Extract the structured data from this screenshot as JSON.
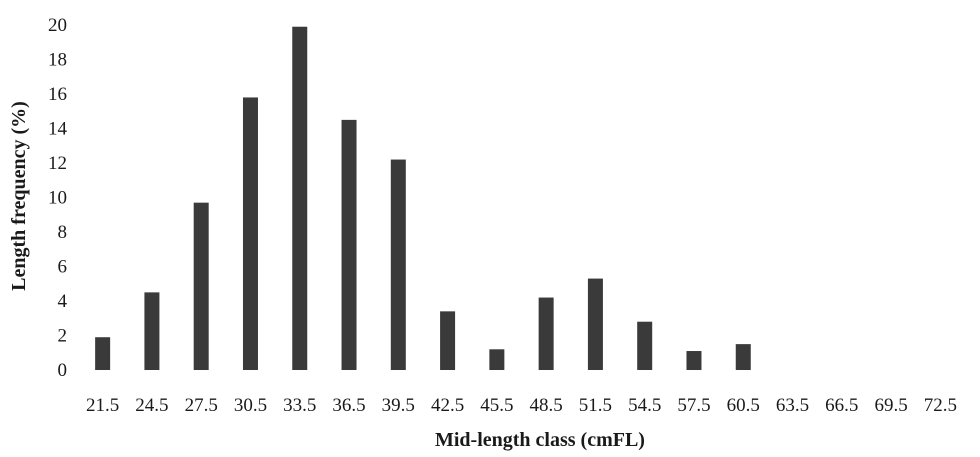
{
  "chart_data": {
    "type": "bar",
    "title": "",
    "xlabel": "Mid-length class (cmFL)",
    "ylabel": "Length frequency (%)",
    "categories": [
      "21.5",
      "24.5",
      "27.5",
      "30.5",
      "33.5",
      "36.5",
      "39.5",
      "42.5",
      "45.5",
      "48.5",
      "51.5",
      "54.5",
      "57.5",
      "60.5",
      "63.5",
      "66.5",
      "69.5",
      "72.5"
    ],
    "values": [
      1.9,
      4.5,
      9.7,
      15.8,
      19.9,
      14.5,
      12.2,
      3.4,
      1.2,
      4.2,
      5.3,
      2.8,
      1.1,
      1.5,
      0,
      0,
      0,
      0
    ],
    "ylim": [
      0,
      20
    ],
    "yticks": [
      0,
      2,
      4,
      6,
      8,
      10,
      12,
      14,
      16,
      18,
      20
    ],
    "grid": false,
    "legend": "none",
    "bar_color": "#3a3a3a"
  }
}
